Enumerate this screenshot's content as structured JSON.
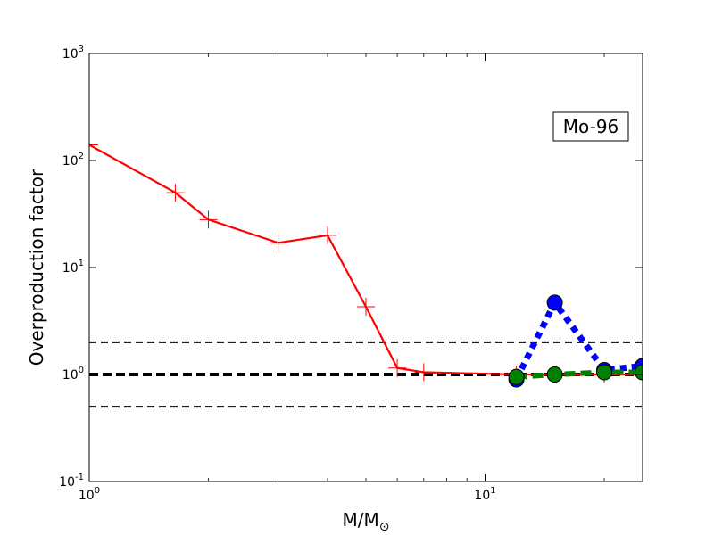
{
  "chart_data": {
    "type": "line",
    "xlabel_main": "M/M",
    "xlabel_sub": "⊙",
    "ylabel": "Overproduction factor",
    "xscale": "log",
    "yscale": "log",
    "xlim": [
      1,
      25
    ],
    "ylim": [
      0.1,
      1000
    ],
    "x_ticks": [
      {
        "value": 1,
        "base": "10",
        "exp": "0"
      },
      {
        "value": 10,
        "base": "10",
        "exp": "1"
      }
    ],
    "y_ticks": [
      {
        "value": 0.1,
        "base": "10",
        "exp": "-1"
      },
      {
        "value": 1,
        "base": "10",
        "exp": "0"
      },
      {
        "value": 10,
        "base": "10",
        "exp": "1"
      },
      {
        "value": 100,
        "base": "10",
        "exp": "2"
      },
      {
        "value": 1000,
        "base": "10",
        "exp": "3"
      }
    ],
    "annotation": "Mo-96",
    "annotation_placement": "top-right",
    "reference_lines": [
      {
        "y": 2.0,
        "style": "dashed",
        "color": "#000000"
      },
      {
        "y": 1.0,
        "style": "dashed-thick",
        "color": "#000000"
      },
      {
        "y": 0.5,
        "style": "dashed",
        "color": "#000000"
      }
    ],
    "series": [
      {
        "style": "solid",
        "marker": "plus",
        "color": "#ff0000",
        "x": [
          1.0,
          1.65,
          2.0,
          3.0,
          4.0,
          5.0,
          6.0,
          7.0,
          12.0,
          15.0,
          20.0,
          25.0
        ],
        "y": [
          140,
          50,
          28,
          17,
          20,
          4.3,
          1.15,
          1.05,
          1.0,
          1.0,
          1.0,
          1.0
        ]
      },
      {
        "style": "dotted",
        "marker": "circle",
        "color": "#0000ff",
        "x": [
          12.0,
          15.0,
          20.0,
          25.0
        ],
        "y": [
          0.9,
          4.7,
          1.1,
          1.2
        ]
      },
      {
        "style": "dashed",
        "marker": "circle",
        "color": "#008000",
        "x": [
          12.0,
          15.0,
          20.0,
          25.0
        ],
        "y": [
          0.95,
          1.0,
          1.05,
          1.05
        ]
      }
    ]
  }
}
